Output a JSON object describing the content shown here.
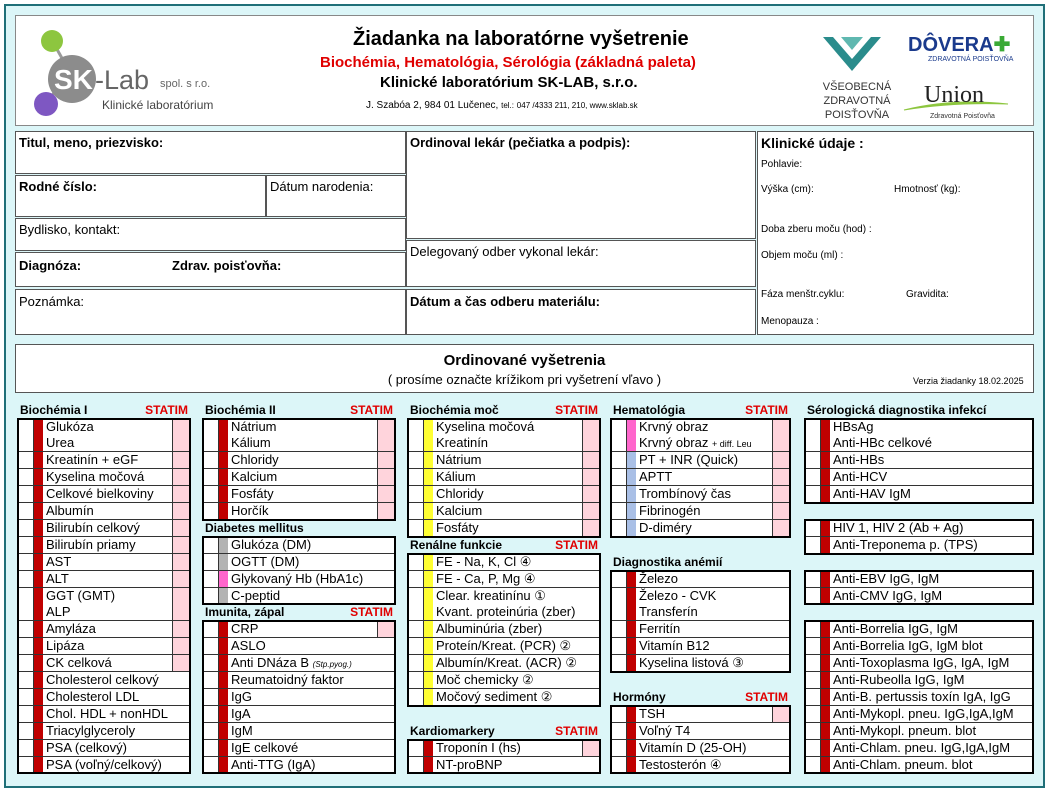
{
  "header": {
    "logo_sk": "SK",
    "logo_lab": "-Lab",
    "logo_spol": "spol. s r.o.",
    "logo_sub": "Klinické laboratórium",
    "title": "Žiadanka na laboratórne vyšetrenie",
    "subtitle": "Biochémia, Hematológia, Sérológia (základná paleta)",
    "company": "Klinické  laboratórium  SK-LAB, s.r.o.",
    "address": "J. Szabóa 2, 984 01 Lučenec,",
    "tel_label": "tel.:",
    "tel": "047 /4333 211, 210, www.sklab.sk",
    "vszp": [
      "VŠEOBECNÁ",
      "ZDRAVOTNÁ",
      "POISŤOVŇA"
    ],
    "dovera": "DÔVERA",
    "dovera_sub": "ZDRAVOTNÁ POISŤOVŇA",
    "union": "Union",
    "union_sub": "Zdravotná Poisťovňa"
  },
  "patient": {
    "name": "Titul, meno, priezvisko:",
    "birth_number": "Rodné číslo:",
    "birth_date": "Dátum narodenia:",
    "address": "Bydlisko, kontakt:",
    "diagnosis": "Diagnóza:",
    "insurance": "Zdrav. poisťovňa:",
    "note": "Poznámka:",
    "doctor": "Ordinoval lekár (pečiatka a podpis):",
    "delegated": "Delegovaný odber vykonal lekár:",
    "sample_time": "Dátum a čas odberu materiálu:",
    "clinical": "Klinické údaje :",
    "sex": "Pohlavie:",
    "height": "Výška (cm):",
    "weight": "Hmotnosť (kg):",
    "urine_time": "Doba zberu moču (hod) :",
    "urine_volume": "Objem moču (ml) :",
    "cycle": "Fáza menštr.cyklu:",
    "pregnancy": "Gravidita:",
    "menopause": "Menopauza :"
  },
  "orders": {
    "title": "Ordinované vyšetrenia",
    "instruction": "( prosíme označte krížikom pri vyšetrení vľavo )",
    "version": "Verzia žiadanky 18.02.2025"
  },
  "columns": [
    {
      "sections": [
        {
          "title": "Biochémia  I",
          "statim": "STATIM",
          "color": "#c00000",
          "items": [
            {
              "name": "Glukóza",
              "statim": true
            },
            {
              "name": "Urea",
              "statim": true
            },
            {
              "name": "Kreatinín + eGF",
              "statim": true
            },
            {
              "name": "Kyselina močová",
              "statim": true
            },
            {
              "name": "Celkové bielkoviny",
              "statim": true
            },
            {
              "name": "Albumín",
              "statim": true
            },
            {
              "name": "Bilirubín celkový",
              "statim": true
            },
            {
              "name": "Bilirubín priamy",
              "statim": true
            },
            {
              "name": "AST",
              "statim": true
            },
            {
              "name": "ALT",
              "statim": true
            },
            {
              "name": "GGT (GMT)",
              "statim": true
            },
            {
              "name": "ALP",
              "statim": true
            },
            {
              "name": "Amyláza",
              "statim": true
            },
            {
              "name": "Lipáza",
              "statim": true
            },
            {
              "name": "CK celková",
              "statim": true
            },
            {
              "name": "Cholesterol celkový"
            },
            {
              "name": "Cholesterol LDL"
            },
            {
              "name": "Chol. HDL + nonHDL"
            },
            {
              "name": "Triacylglyceroly"
            },
            {
              "name": "PSA (celkový)"
            },
            {
              "name": "PSA (voľný/celkový)"
            }
          ]
        }
      ]
    },
    {
      "sections": [
        {
          "title": "Biochémia II",
          "statim": "STATIM",
          "color": "#c00000",
          "items": [
            {
              "name": "Nátrium",
              "statim": true
            },
            {
              "name": "Kálium",
              "statim": true
            },
            {
              "name": "Chloridy",
              "statim": true
            },
            {
              "name": "Kalcium",
              "statim": true
            },
            {
              "name": "Fosfáty",
              "statim": true
            },
            {
              "name": "Horčík",
              "statim": true
            }
          ]
        },
        {
          "title": "Diabetes mellitus",
          "color": "#b3b3b3",
          "items": [
            {
              "name": "Glukóza (DM)"
            },
            {
              "name": "OGTT (DM)"
            },
            {
              "name": "Glykovaný Hb (HbA1c)",
              "color": "#ff66cc"
            },
            {
              "name": "C-peptid"
            }
          ]
        },
        {
          "title": "Imunita, zápal",
          "statim": "STATIM",
          "color": "#c00000",
          "items": [
            {
              "name": "CRP",
              "statim": true
            },
            {
              "name": "ASLO"
            },
            {
              "name": "Anti DNáza B",
              "note": "(Stp.pyog.)"
            },
            {
              "name": "Reumatoidný faktor"
            },
            {
              "name": "IgG"
            },
            {
              "name": "IgA"
            },
            {
              "name": "IgM"
            },
            {
              "name": "IgE celkové"
            },
            {
              "name": "Anti-TTG (IgA)"
            }
          ]
        }
      ]
    },
    {
      "sections": [
        {
          "title": "Biochémia moč",
          "statim": "STATIM",
          "color": "#ffff33",
          "items": [
            {
              "name": "Kyselina močová",
              "statim": true
            },
            {
              "name": "Kreatinín",
              "statim": true
            },
            {
              "name": "Nátrium",
              "statim": true
            },
            {
              "name": "Kálium",
              "statim": true
            },
            {
              "name": "Chloridy",
              "statim": true
            },
            {
              "name": "Kalcium",
              "statim": true
            },
            {
              "name": "Fosfáty",
              "statim": true
            }
          ]
        },
        {
          "title": "Renálne funkcie",
          "statim": "STATIM",
          "color": "#ffff33",
          "items": [
            {
              "name": "FE - Na, K, Cl ④"
            },
            {
              "name": "FE - Ca, P, Mg ④"
            },
            {
              "name": "Clear. kreatinínu ①"
            },
            {
              "name": "Kvant. proteinúria (zber)"
            },
            {
              "name": "Albuminúria (zber)"
            },
            {
              "name": "Proteín/Kreat. (PCR) ②"
            },
            {
              "name": "Albumín/Kreat. (ACR) ②"
            },
            {
              "name": "Moč chemicky ②"
            },
            {
              "name": "Močový sediment ②"
            }
          ]
        },
        {
          "title": "Kardiomarkery",
          "statim": "STATIM",
          "color": "#c00000",
          "items": [
            {
              "name": "Troponín I (hs)",
              "statim": true
            },
            {
              "name": "NT-proBNP"
            }
          ]
        }
      ]
    },
    {
      "sections": [
        {
          "title": "Hematológia",
          "statim": "STATIM",
          "color": "#a9bfe6",
          "items": [
            {
              "name": "Krvný obraz",
              "statim": true,
              "color": "#ff66cc"
            },
            {
              "name": "Krvný obraz",
              "note": "+ diff. Leu",
              "statim": true,
              "color": "#ff66cc"
            },
            {
              "name": "PT + INR (Quick)",
              "statim": true
            },
            {
              "name": "APTT",
              "statim": true
            },
            {
              "name": "Trombínový čas",
              "statim": true
            },
            {
              "name": "Fibrinogén",
              "statim": true
            },
            {
              "name": "D-diméry",
              "statim": true
            }
          ]
        },
        {
          "title": "Diagnostika anémií",
          "color": "#c00000",
          "items": [
            {
              "name": "Železo"
            },
            {
              "name": "Železo - CVK"
            },
            {
              "name": "Transferín"
            },
            {
              "name": "Ferritín"
            },
            {
              "name": "Vitamín B12"
            },
            {
              "name": "Kyselina listová ③"
            }
          ]
        },
        {
          "title": "Hormóny",
          "statim": "STATIM",
          "color": "#c00000",
          "items": [
            {
              "name": "TSH",
              "statim": true
            },
            {
              "name": "Voľný T4"
            },
            {
              "name": "Vitamín D (25-OH)"
            },
            {
              "name": "Testosterón ④"
            }
          ]
        }
      ]
    },
    {
      "sections": [
        {
          "title": "Sérologická diagnostika infekcí",
          "color": "#c00000",
          "items": [
            {
              "name": "HBsAg"
            },
            {
              "name": "Anti-HBc celkové"
            },
            {
              "name": "Anti-HBs"
            },
            {
              "name": "Anti-HCV"
            },
            {
              "name": "Anti-HAV IgM"
            }
          ]
        },
        {
          "color": "#c00000",
          "items": [
            {
              "name": "HIV 1, HIV 2 (Ab + Ag)"
            },
            {
              "name": "Anti-Treponema p. (TPS)"
            }
          ]
        },
        {
          "color": "#c00000",
          "items": [
            {
              "name": "Anti-EBV IgG, IgM"
            },
            {
              "name": "Anti-CMV IgG, IgM"
            }
          ]
        },
        {
          "color": "#c00000",
          "items": [
            {
              "name": "Anti-Borrelia IgG, IgM"
            },
            {
              "name": "Anti-Borrelia IgG, IgM blot"
            },
            {
              "name": "Anti-Toxoplasma IgG, IgA, IgM"
            },
            {
              "name": "Anti-Rubeolla IgG, IgM"
            },
            {
              "name": "Anti-B. pertussis toxín IgA, IgG"
            },
            {
              "name": "Anti-Mykopl. pneu. IgG,IgA,IgM"
            },
            {
              "name": "Anti-Mykopl. pneum. blot"
            },
            {
              "name": "Anti-Chlam. pneu. IgG,IgA,IgM"
            },
            {
              "name": "Anti-Chlam. pneum. blot"
            }
          ]
        }
      ]
    }
  ]
}
